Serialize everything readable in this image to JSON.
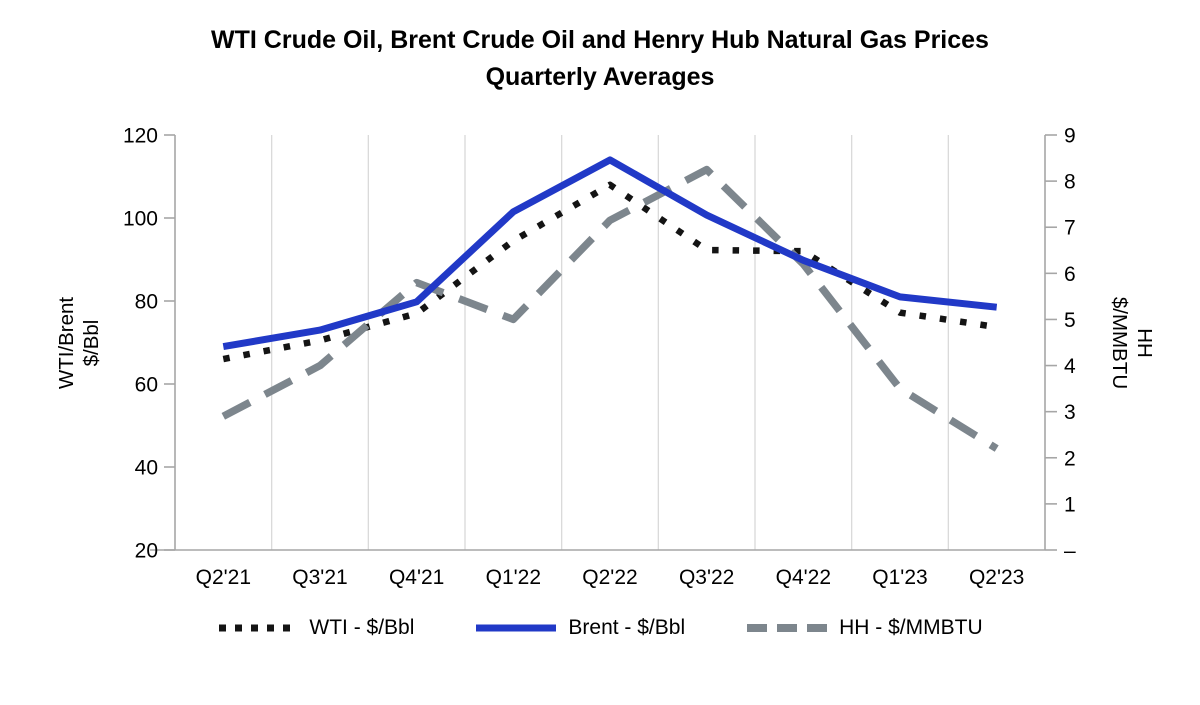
{
  "chart_data": {
    "type": "line",
    "title_line1": "WTI Crude Oil, Brent Crude Oil and Henry Hub Natural Gas Prices",
    "title_line2": "Quarterly Averages",
    "categories": [
      "Q2'21",
      "Q3'21",
      "Q4'21",
      "Q1'22",
      "Q2'22",
      "Q3'22",
      "Q4'22",
      "Q1'23",
      "Q2'23"
    ],
    "series": [
      {
        "name": "WTI - $/Bbl",
        "axis": "left",
        "style": "dotted",
        "color": "#141414",
        "values": [
          66,
          70.5,
          77,
          94.5,
          108,
          92.3,
          92,
          77.2,
          73.7
        ]
      },
      {
        "name": "Brent - $/Bbl",
        "axis": "left",
        "style": "solid",
        "color": "#2139c7",
        "values": [
          69,
          73,
          79.8,
          101.5,
          114,
          100.7,
          89.8,
          81,
          78.5
        ]
      },
      {
        "name": "HH - $/MMBTU",
        "axis": "right",
        "style": "dashed",
        "color": "#7d868d",
        "values": [
          2.9,
          4.0,
          5.8,
          5.0,
          7.15,
          8.25,
          6.2,
          3.5,
          2.2
        ]
      }
    ],
    "left_axis": {
      "title_line1": "WTI/Brent",
      "title_line2": "$/Bbl",
      "min": 20,
      "max": 120,
      "tick_values": [
        120,
        100,
        80,
        60,
        40,
        20
      ],
      "tick_labels": [
        "120",
        "100",
        "80",
        "60",
        "40",
        "20"
      ]
    },
    "right_axis": {
      "title_line1": "HH",
      "title_line2": "$/MMBTU",
      "min": 0,
      "max": 9,
      "tick_values": [
        9,
        8,
        7,
        6,
        5,
        4,
        3,
        2,
        1,
        0
      ],
      "tick_labels": [
        "9",
        "8",
        "7",
        "6",
        "5",
        "4",
        "3",
        "2",
        "1",
        "–"
      ]
    },
    "grid": "vertical-only",
    "legend_position": "bottom",
    "colors": {
      "axis_line": "#a6a6a6",
      "gridline": "#d9d9d9",
      "text": "#000000"
    }
  }
}
